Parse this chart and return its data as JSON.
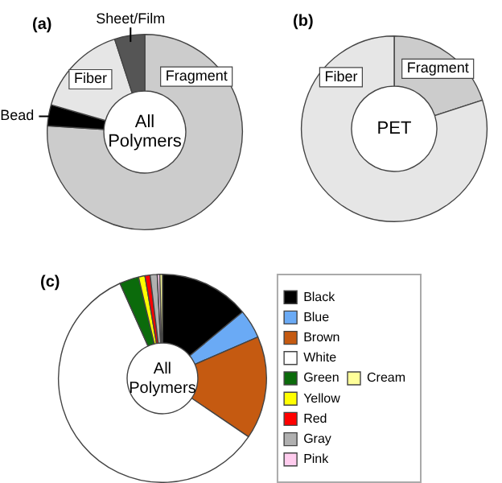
{
  "chart_data": [
    {
      "type": "donut",
      "title": "(a)",
      "annotations": [
        "All Polymers"
      ],
      "categories": [
        "Fragment",
        "Bead",
        "Fiber",
        "Sheet/Film"
      ],
      "values": [
        76,
        3.5,
        15.5,
        5
      ],
      "colors": [
        "#cccccc",
        "#000000",
        "#e6e6e6",
        "#555555"
      ],
      "legend": false
    },
    {
      "type": "donut",
      "title": "(b)",
      "annotations": [
        "PET"
      ],
      "categories": [
        "Fragment",
        "Fiber"
      ],
      "values": [
        20,
        80
      ],
      "colors": [
        "#cccccc",
        "#e6e6e6"
      ],
      "legend": false
    },
    {
      "type": "donut",
      "title": "(c)",
      "annotations": [
        "All Polymers"
      ],
      "categories": [
        "Black",
        "Blue",
        "Brown",
        "White",
        "Green",
        "Yellow",
        "Red",
        "Gray",
        "Pink",
        "Cream"
      ],
      "values": [
        14,
        4.5,
        16,
        58.8,
        3,
        1,
        0.8,
        1.1,
        0.4,
        0.4
      ],
      "colors": [
        "#000000",
        "#6aaaf5",
        "#c55a11",
        "#ffffff",
        "#0b6b0b",
        "#ffff00",
        "#ff0000",
        "#b0b0b0",
        "#ffccee",
        "#ffff99"
      ],
      "legend": "right"
    }
  ]
}
